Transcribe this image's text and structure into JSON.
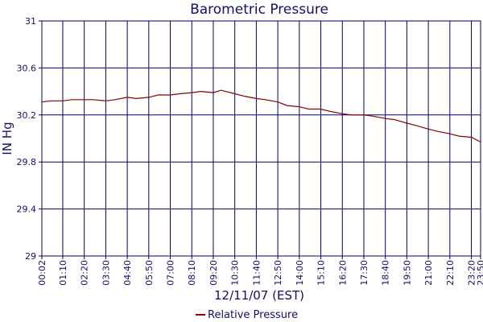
{
  "chart_data": {
    "type": "line",
    "title": "Barometric Pressure",
    "xlabel": "12/11/07 (EST)",
    "ylabel": "IN Hg",
    "ylim": [
      29,
      31
    ],
    "y_ticks": [
      "29",
      "29.4",
      "29.8",
      "30.2",
      "30.6",
      "31"
    ],
    "x_ticks": [
      "00:02",
      "01:10",
      "02:20",
      "03:30",
      "04:40",
      "05:50",
      "07:00",
      "08:10",
      "09:20",
      "10:30",
      "11:40",
      "12:50",
      "14:00",
      "15:10",
      "16:20",
      "17:30",
      "18:40",
      "19:50",
      "21:00",
      "22:10",
      "23:20",
      "23:50"
    ],
    "grid": true,
    "legend_position": "bottom-center",
    "colors": {
      "series": "#8b0000",
      "grid": "#000066",
      "axis": "#000066",
      "text": "#10106a"
    },
    "series": [
      {
        "name": "Relative Pressure",
        "x": [
          "00:02",
          "00:30",
          "01:10",
          "01:40",
          "02:20",
          "02:50",
          "03:30",
          "04:00",
          "04:40",
          "05:10",
          "05:50",
          "06:20",
          "07:00",
          "07:30",
          "08:10",
          "08:40",
          "09:20",
          "09:45",
          "10:30",
          "11:00",
          "11:40",
          "12:10",
          "12:50",
          "13:20",
          "14:00",
          "14:30",
          "15:10",
          "15:40",
          "16:20",
          "16:50",
          "17:30",
          "18:00",
          "18:40",
          "19:10",
          "19:50",
          "20:20",
          "21:00",
          "21:30",
          "22:10",
          "22:40",
          "23:20",
          "23:50"
        ],
        "values": [
          30.31,
          30.32,
          30.32,
          30.33,
          30.33,
          30.33,
          30.32,
          30.33,
          30.35,
          30.34,
          30.35,
          30.37,
          30.37,
          30.38,
          30.39,
          30.4,
          30.39,
          30.41,
          30.38,
          30.36,
          30.34,
          30.33,
          30.31,
          30.28,
          30.27,
          30.25,
          30.25,
          30.23,
          30.21,
          30.2,
          30.2,
          30.19,
          30.17,
          30.16,
          30.13,
          30.11,
          30.08,
          30.06,
          30.04,
          30.02,
          30.01,
          29.97
        ]
      }
    ]
  }
}
